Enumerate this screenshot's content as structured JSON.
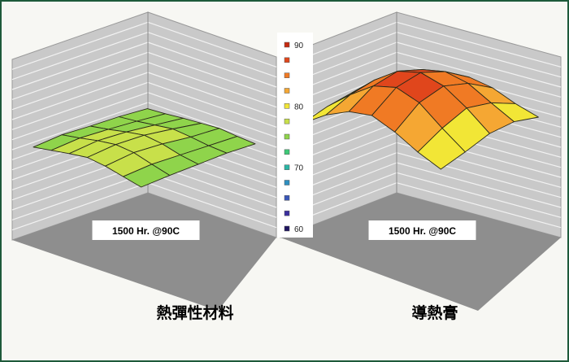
{
  "panels": [
    {
      "id": "left",
      "tag": "1500 Hr. @90C",
      "caption": "熱彈性材料"
    },
    {
      "id": "right",
      "tag": "1500 Hr. @90C",
      "caption": "導熱膏"
    }
  ],
  "colors": {
    "wall": "#c9c9c9",
    "wall_grid": "#f2f2f2",
    "floor": "#8e8e8e",
    "frame": "#1e5a3a"
  },
  "chart_data": {
    "type": "surface3d",
    "title": "",
    "zlim": [
      60,
      90
    ],
    "colorbar": {
      "ticks": [
        90,
        80,
        70,
        60
      ],
      "swatches": [
        {
          "value": 90,
          "color": "#c62a10"
        },
        {
          "value": 87.5,
          "color": "#e0461c"
        },
        {
          "value": 85,
          "color": "#f07a24"
        },
        {
          "value": 82.5,
          "color": "#f5a733"
        },
        {
          "value": 80,
          "color": "#f2e636"
        },
        {
          "value": 77.5,
          "color": "#c8e04a"
        },
        {
          "value": 75,
          "color": "#8fd44b"
        },
        {
          "value": 72.5,
          "color": "#3dc978"
        },
        {
          "value": 70,
          "color": "#2ab5a4"
        },
        {
          "value": 67.5,
          "color": "#2e8fc0"
        },
        {
          "value": 65,
          "color": "#3a56b8"
        },
        {
          "value": 62.5,
          "color": "#3b2f9e"
        },
        {
          "value": 60,
          "color": "#1f1560"
        }
      ]
    },
    "surfaces": [
      {
        "panel": "left",
        "z": [
          [
            75.2,
            75.4,
            75.7,
            75.9,
            76.1,
            75.8,
            75.6
          ],
          [
            75.5,
            75.8,
            76.2,
            76.6,
            76.3,
            75.9,
            75.7
          ],
          [
            75.6,
            76.1,
            76.7,
            77.2,
            76.8,
            76.0,
            75.5
          ],
          [
            75.8,
            76.3,
            76.9,
            77.3,
            77.0,
            76.1,
            75.3
          ],
          [
            75.4,
            75.9,
            76.4,
            76.8,
            76.4,
            75.7,
            75.0
          ]
        ]
      },
      {
        "panel": "right",
        "z": [
          [
            79.5,
            81.0,
            82.6,
            83.5,
            82.8,
            81.2,
            80.0
          ],
          [
            80.6,
            83.0,
            85.3,
            86.0,
            85.1,
            82.9,
            80.8
          ],
          [
            80.9,
            84.1,
            86.6,
            87.4,
            86.2,
            83.6,
            80.4
          ],
          [
            80.2,
            83.2,
            85.7,
            86.5,
            85.0,
            81.8,
            78.9
          ],
          [
            79.0,
            81.4,
            83.0,
            83.4,
            81.7,
            79.4,
            77.6
          ]
        ]
      }
    ]
  }
}
